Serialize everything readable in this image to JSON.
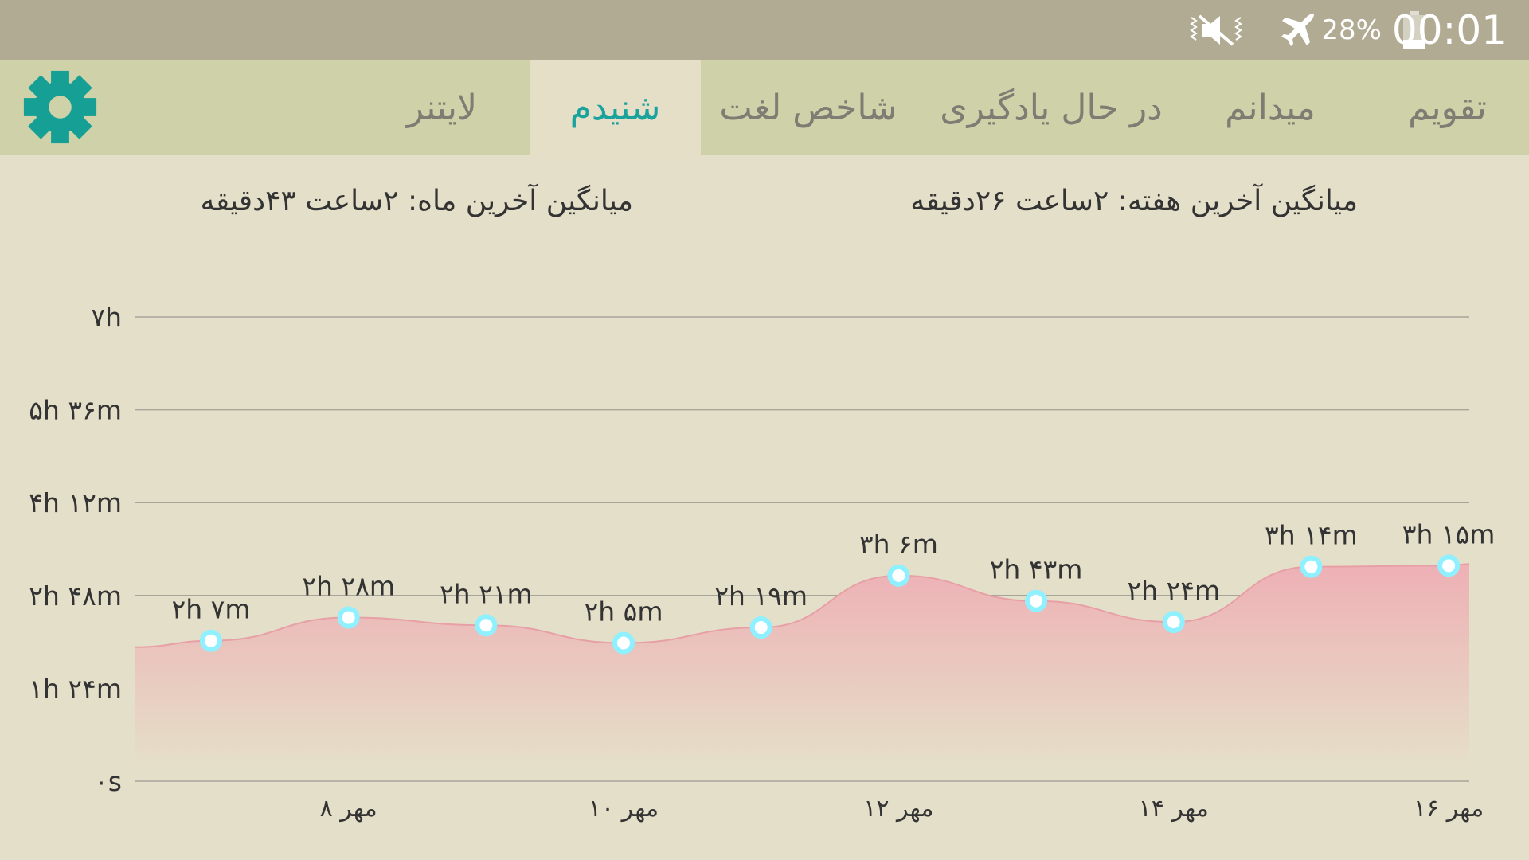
{
  "status_bar": {
    "clock": "00:01",
    "battery_percent": "28%",
    "battery_level": 0.28,
    "icons": [
      "mute-icon",
      "airplane-icon",
      "battery-icon"
    ]
  },
  "tabs": [
    {
      "label": "تقویم",
      "active": false
    },
    {
      "label": "میدانم",
      "active": false
    },
    {
      "label": "در حال یادگیری",
      "active": false
    },
    {
      "label": "شاخص لغت",
      "active": false
    },
    {
      "label": "شنیدم",
      "active": true
    },
    {
      "label": "لایتنر",
      "active": false
    }
  ],
  "settings_icon": "gear-icon",
  "summary": {
    "week_avg": "میانگین آخرین هفته: ۲ساعت  ۲۶دقیقه",
    "month_avg": "میانگین آخرین ماه: ۲ساعت  ۴۳دقیقه"
  },
  "chart_data": {
    "type": "area",
    "y_unit": "minutes",
    "ylim": [
      0,
      420
    ],
    "y_ticks": [
      {
        "value": 0,
        "label": "۰s"
      },
      {
        "value": 84,
        "label": "۱h ۲۴m"
      },
      {
        "value": 168,
        "label": "۲h ۴۸m"
      },
      {
        "value": 252,
        "label": "۴h ۱۲m"
      },
      {
        "value": 336,
        "label": "۵h ۳۶m"
      },
      {
        "value": 420,
        "label": "۷h"
      }
    ],
    "x_ticks": [
      {
        "day": 8,
        "label": "۸ مهر"
      },
      {
        "day": 10,
        "label": "۱۰ مهر"
      },
      {
        "day": 12,
        "label": "۱۲ مهر"
      },
      {
        "day": 14,
        "label": "۱۴ مهر"
      },
      {
        "day": 16,
        "label": "۱۶ مهر"
      }
    ],
    "points": [
      {
        "day": 7,
        "value": 127,
        "label": "۲h ۷m"
      },
      {
        "day": 8,
        "value": 148,
        "label": "۲h ۲۸m"
      },
      {
        "day": 9,
        "value": 141,
        "label": "۲h ۲۱m"
      },
      {
        "day": 10,
        "value": 125,
        "label": "۲h ۵m"
      },
      {
        "day": 11,
        "value": 139,
        "label": "۲h ۱۹m"
      },
      {
        "day": 12,
        "value": 186,
        "label": "۳h ۶m"
      },
      {
        "day": 13,
        "value": 163,
        "label": "۲h ۴۳m"
      },
      {
        "day": 14,
        "value": 144,
        "label": "۲h ۲۴m"
      },
      {
        "day": 15,
        "value": 194,
        "label": "۳h ۱۴m"
      },
      {
        "day": 16,
        "value": 195,
        "label": "۳h ۱۵m"
      }
    ],
    "grid": true,
    "colors": {
      "fill_top": "#eeb0b5",
      "fill_bottom": "#e5dfc8",
      "line": "#e7a0a6",
      "marker_ring": "#8ff0ff",
      "marker_center": "#ffffff",
      "grid": "#a7a49a"
    }
  }
}
